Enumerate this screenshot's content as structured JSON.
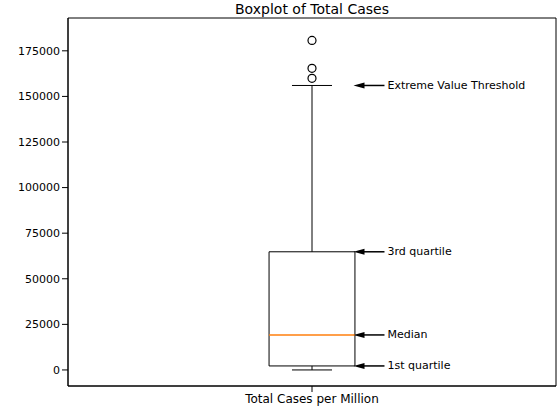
{
  "chart_data": {
    "type": "box",
    "title": "Boxplot of Total Cases",
    "categories": [
      "Total Cases per Million"
    ],
    "boxes": [
      {
        "whisker_low": 0,
        "q1": 2200,
        "median": 19200,
        "q3": 64800,
        "whisker_high": 156000,
        "outliers": [
          159900,
          165400,
          180700
        ],
        "color": "#ff7f0e"
      }
    ],
    "ylim": [
      -8800,
      193000
    ],
    "yticks": [
      0,
      25000,
      50000,
      75000,
      100000,
      125000,
      150000,
      175000
    ],
    "annotations": [
      {
        "text": "Extreme Value Threshold",
        "y": 156000
      },
      {
        "text": "3rd quartile",
        "y": 64800
      },
      {
        "text": "Median",
        "y": 19200
      },
      {
        "text": "1st quartile",
        "y": 2200
      }
    ]
  }
}
